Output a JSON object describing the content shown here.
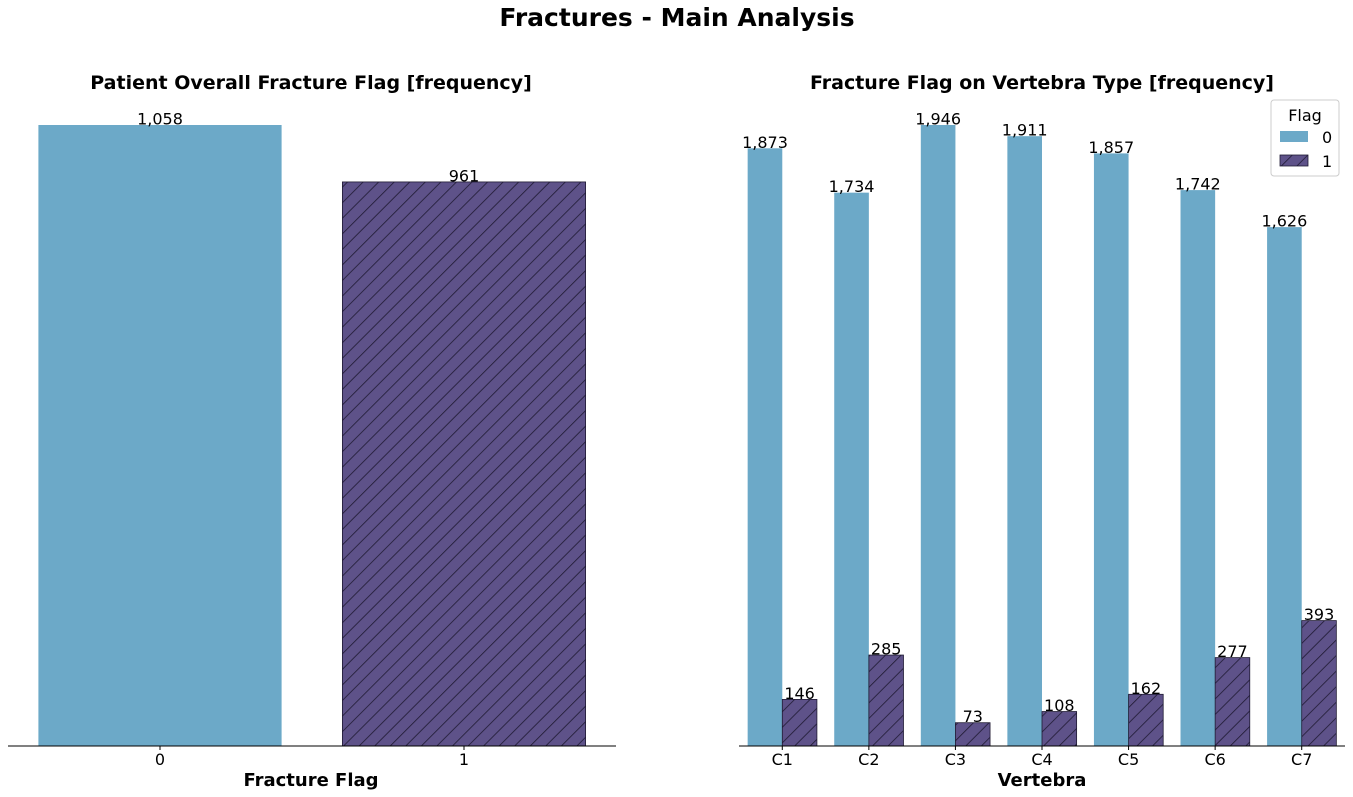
{
  "figure": {
    "suptitle": "Fractures - Main Analysis"
  },
  "colors": {
    "flag0": "#6ca9c8",
    "flag1": "#5e5289",
    "hatch": "#1f1a33",
    "axis": "#000000"
  },
  "chart_data": [
    {
      "type": "bar",
      "title": "Patient Overall Fracture Flag [frequency]",
      "xlabel": "Fracture Flag",
      "ylabel": "",
      "categories": [
        "0",
        "1"
      ],
      "values": [
        1058,
        961
      ],
      "value_labels": [
        "1,058",
        "961"
      ],
      "ylim": [
        0,
        1058
      ],
      "grid": false,
      "hatch": [
        false,
        true
      ]
    },
    {
      "type": "bar",
      "title": "Fracture Flag on Vertebra Type [frequency]",
      "xlabel": "Vertebra",
      "ylabel": "",
      "categories": [
        "C1",
        "C2",
        "C3",
        "C4",
        "C5",
        "C6",
        "C7"
      ],
      "series": [
        {
          "name": "0",
          "values": [
            1873,
            1734,
            1946,
            1911,
            1857,
            1742,
            1626
          ],
          "value_labels": [
            "1,873",
            "1,734",
            "1,946",
            "1,911",
            "1,857",
            "1,742",
            "1,626"
          ]
        },
        {
          "name": "1",
          "values": [
            146,
            285,
            73,
            108,
            162,
            277,
            393
          ],
          "value_labels": [
            "146",
            "285",
            "73",
            "108",
            "162",
            "277",
            "393"
          ]
        }
      ],
      "ylim": [
        0,
        1946
      ],
      "grid": false,
      "legend": {
        "title": "Flag",
        "placement": "top-right"
      }
    }
  ]
}
